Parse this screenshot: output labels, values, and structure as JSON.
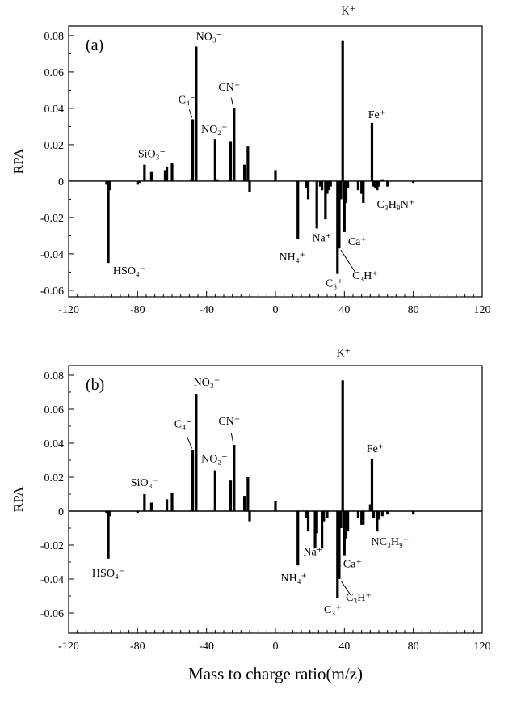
{
  "xlabel": "Mass to charge ratio(m/z)",
  "chart_data": [
    {
      "type": "bar",
      "panel_label": "(a)",
      "ylabel": "RPA",
      "xlim": [
        -120,
        120
      ],
      "ylim": [
        -0.0636,
        0.0853
      ],
      "xticks": [
        -120,
        -80,
        -40,
        0,
        40,
        80,
        120
      ],
      "xtick_labels": [
        "-120",
        "-80",
        "-40",
        "0",
        "40",
        "80",
        "120"
      ],
      "yticks": [
        0.08,
        0.06,
        0.04,
        0.02,
        0,
        -0.02,
        -0.04,
        -0.06
      ],
      "ytick_labels": [
        "0.08",
        "0.06",
        "0.04",
        "0.02",
        "0",
        "-0.02",
        "-0.04",
        "-0.06"
      ],
      "x": [
        -98,
        -97,
        -96,
        -80,
        -79,
        -76,
        -72,
        -64,
        -63,
        -60,
        -49,
        -48,
        -46,
        -35,
        -34,
        -26,
        -24,
        -18,
        -16,
        -15,
        0,
        13,
        18,
        19,
        24,
        26,
        27,
        29,
        30,
        31,
        32,
        36,
        37,
        38,
        39,
        40,
        41,
        42,
        48,
        50,
        51,
        56,
        57,
        58,
        59,
        60,
        62,
        65,
        80
      ],
      "values": [
        -0.002,
        -0.045,
        -0.005,
        -0.002,
        -0.001,
        0.009,
        0.005,
        0.006,
        0.008,
        0.01,
        0.001,
        0.034,
        0.074,
        0.023,
        0.001,
        0.022,
        0.04,
        0.009,
        0.019,
        -0.006,
        0.006,
        -0.032,
        -0.004,
        -0.01,
        -0.026,
        -0.003,
        -0.005,
        -0.021,
        -0.007,
        -0.005,
        -0.003,
        -0.051,
        -0.037,
        -0.01,
        0.077,
        -0.028,
        -0.012,
        -0.004,
        -0.005,
        -0.007,
        -0.012,
        0.032,
        -0.003,
        -0.004,
        -0.005,
        -0.003,
        0.001,
        -0.003,
        -0.001
      ],
      "annotations": [
        {
          "text": "HSO₄⁻",
          "mz": -97
        },
        {
          "text": "SiO₃⁻",
          "mz": -76
        },
        {
          "text": "C₄⁻",
          "mz": -48
        },
        {
          "text": "NO₃⁻",
          "mz": -46
        },
        {
          "text": "NO₂⁻",
          "mz": -35
        },
        {
          "text": "CN⁻",
          "mz": -24
        },
        {
          "text": "K⁺",
          "mz": 39
        },
        {
          "text": "Fe⁺",
          "mz": 56
        },
        {
          "text": "C₃H₉N⁺",
          "mz": 59
        },
        {
          "text": "NH₄⁺",
          "mz": 13
        },
        {
          "text": "Na⁺",
          "mz": 24
        },
        {
          "text": "Ca⁺",
          "mz": 40
        },
        {
          "text": "C₃H⁺",
          "mz": 37
        },
        {
          "text": "C₃⁺",
          "mz": 36
        }
      ]
    },
    {
      "type": "bar",
      "panel_label": "(b)",
      "ylabel": "RPA",
      "xlim": [
        -120,
        120
      ],
      "ylim": [
        -0.0719,
        0.0857
      ],
      "xticks": [
        -120,
        -80,
        -40,
        0,
        40,
        80,
        120
      ],
      "xtick_labels": [
        "-120",
        "-80",
        "-40",
        "0",
        "40",
        "80",
        "120"
      ],
      "yticks": [
        0.08,
        0.06,
        0.04,
        0.02,
        0,
        -0.02,
        -0.04,
        -0.06
      ],
      "ytick_labels": [
        "0.08",
        "0.06",
        "0.04",
        "0.02",
        "0",
        "-0.02",
        "-0.04",
        "-0.06"
      ],
      "x": [
        -98,
        -97,
        -96,
        -80,
        -76,
        -72,
        -63,
        -60,
        -49,
        -48,
        -46,
        -35,
        -26,
        -24,
        -18,
        -16,
        -15,
        0,
        13,
        18,
        19,
        23,
        24,
        27,
        28,
        30,
        36,
        37,
        38,
        39,
        40,
        41,
        42,
        48,
        50,
        51,
        55,
        56,
        57,
        59,
        60,
        62,
        65,
        80
      ],
      "values": [
        -0.001,
        -0.028,
        -0.003,
        -0.001,
        0.01,
        0.005,
        0.007,
        0.011,
        0.001,
        0.036,
        0.069,
        0.024,
        0.018,
        0.039,
        0.009,
        0.02,
        -0.006,
        0.006,
        -0.032,
        -0.004,
        -0.012,
        -0.022,
        -0.013,
        -0.022,
        -0.006,
        -0.004,
        -0.051,
        -0.04,
        -0.01,
        0.077,
        -0.026,
        -0.016,
        -0.012,
        -0.004,
        -0.008,
        -0.008,
        0.004,
        0.031,
        -0.004,
        -0.012,
        -0.005,
        -0.003,
        -0.002,
        -0.002
      ],
      "annotations": [
        {
          "text": "HSO₄⁻",
          "mz": -97
        },
        {
          "text": "SiO₃⁻",
          "mz": -76
        },
        {
          "text": "C₄⁻",
          "mz": -48
        },
        {
          "text": "NO₃⁻",
          "mz": -46
        },
        {
          "text": "NO₂⁻",
          "mz": -35
        },
        {
          "text": "CN⁻",
          "mz": -24
        },
        {
          "text": "K⁺",
          "mz": 39
        },
        {
          "text": "Fe⁺",
          "mz": 56
        },
        {
          "text": "NC₃H₉⁺",
          "mz": 59
        },
        {
          "text": "NH₄⁺",
          "mz": 13
        },
        {
          "text": "Na⁺",
          "mz": 24
        },
        {
          "text": "Ca⁺",
          "mz": 40
        },
        {
          "text": "C₃H⁺",
          "mz": 37
        },
        {
          "text": "C₃⁺",
          "mz": 36
        }
      ]
    }
  ]
}
